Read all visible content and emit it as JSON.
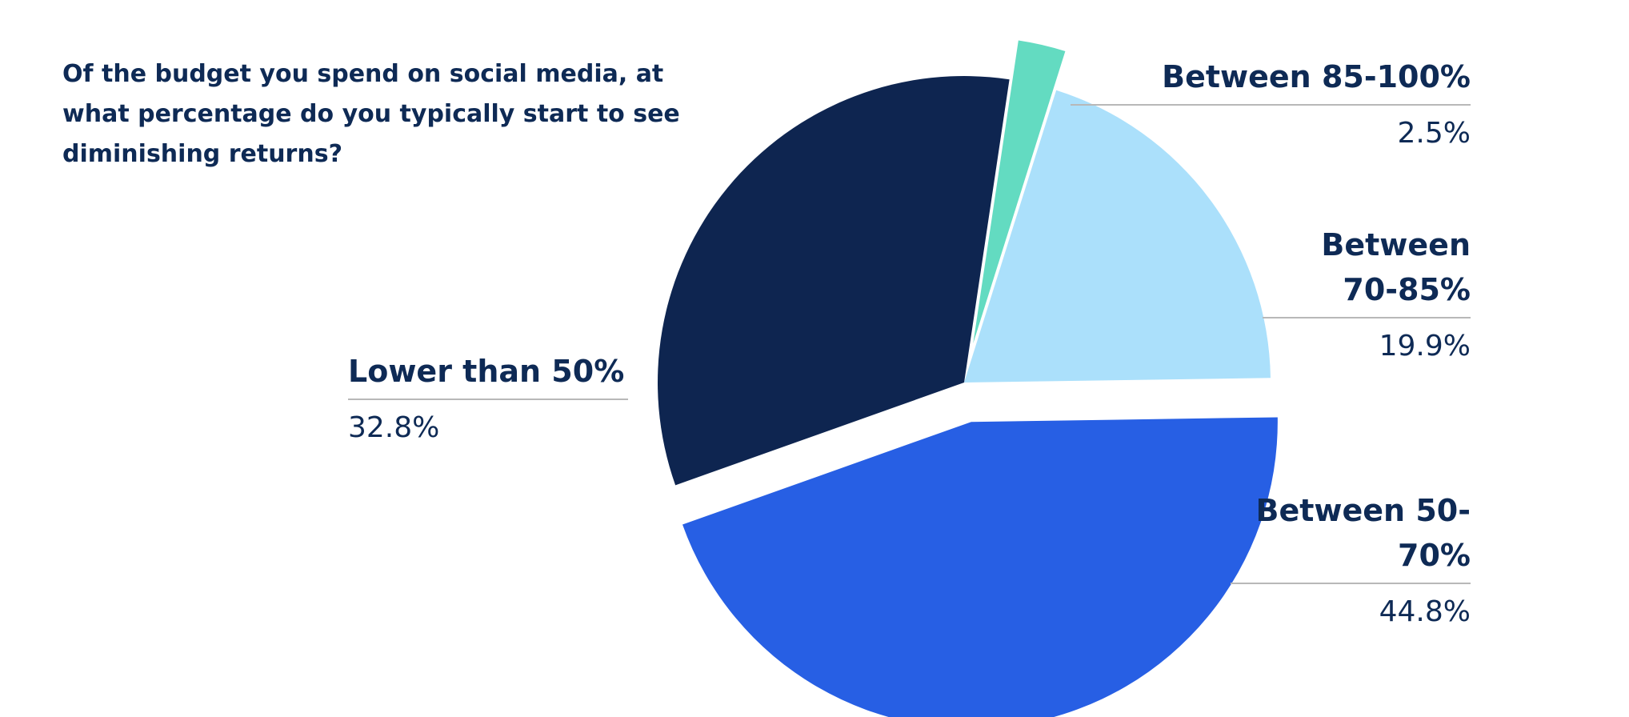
{
  "chart_data": {
    "type": "pie",
    "title": "Of the budget you spend on social media, at what percentage do you typically start to see diminishing returns?",
    "slices": [
      {
        "label": "Between 85-100%",
        "value": 2.5,
        "value_label": "2.5%",
        "color": "#63dbc1",
        "exploded": true
      },
      {
        "label": "Between 70-85%",
        "value": 19.9,
        "value_label": "19.9%",
        "color": "#abe0fb",
        "exploded": false
      },
      {
        "label": "Between 50-70%",
        "value": 44.8,
        "value_label": "44.8%",
        "color": "#275fe4",
        "exploded": true
      },
      {
        "label": "Lower than 50%",
        "value": 32.8,
        "value_label": "32.8%",
        "color": "#0e2550",
        "exploded": false
      }
    ],
    "label_color": "#0e2a55",
    "rule_color": "#b8b8b8"
  }
}
